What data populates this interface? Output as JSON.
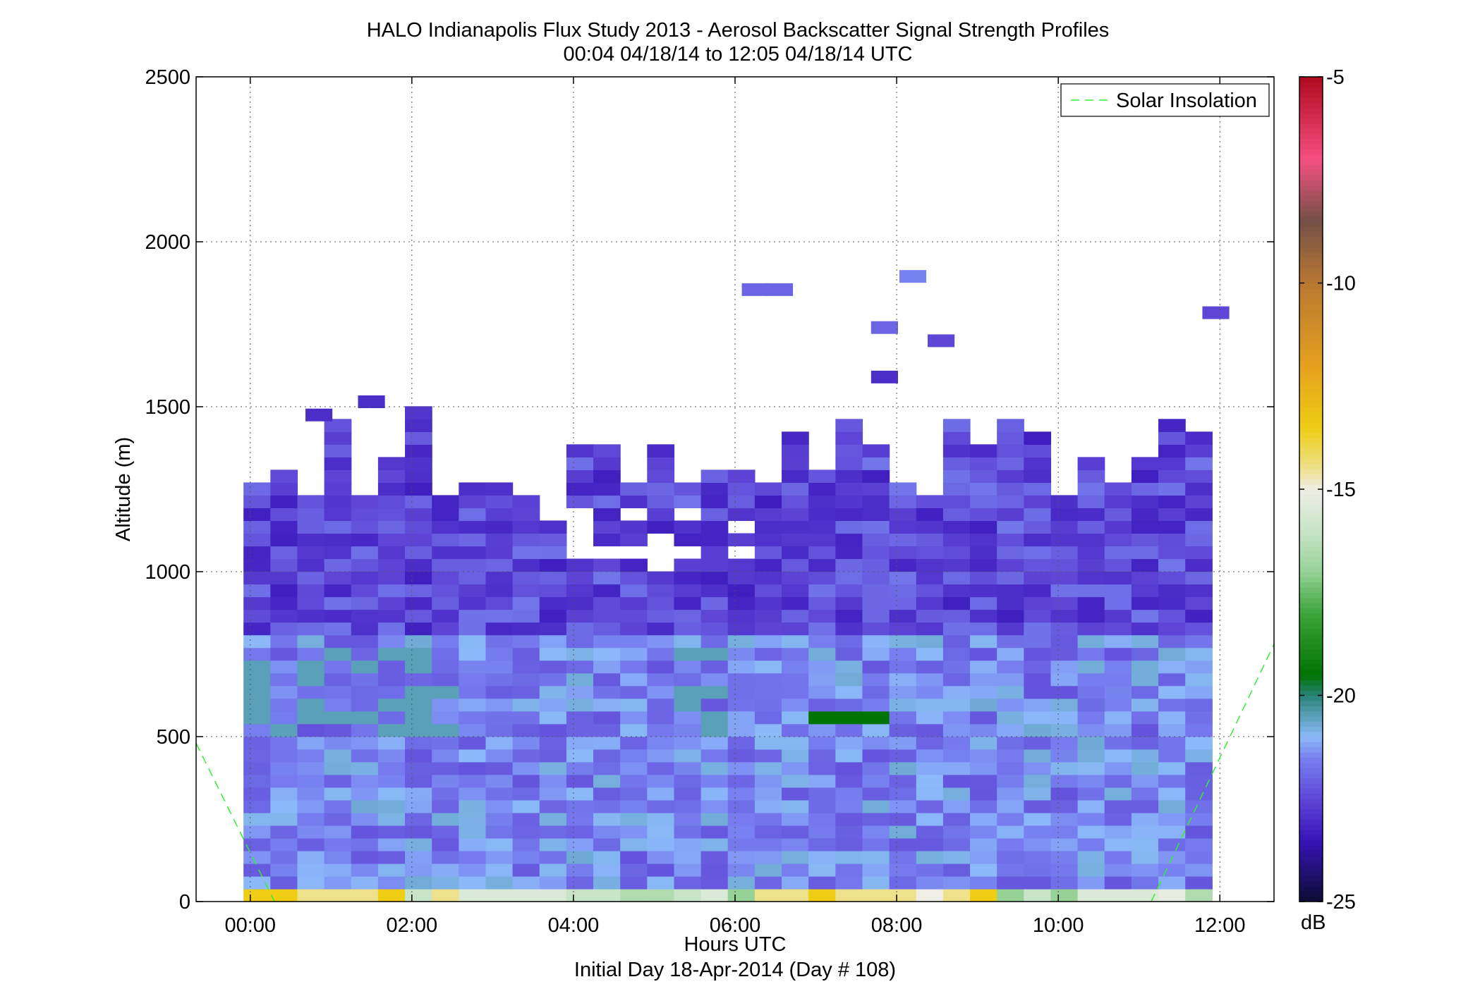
{
  "chart_data": {
    "type": "heatmap",
    "title": "HALO Indianapolis Flux Study 2013 - Aerosol Backscatter Signal Strength Profiles",
    "subtitle": "00:04 04/18/14 to 12:05 04/18/14  UTC",
    "xlabel": "Hours UTC",
    "xlabel2": "Initial Day 18-Apr-2014 (Day # 108)",
    "ylabel": "Altitude (m)",
    "x_ticks": [
      "00:00",
      "02:00",
      "04:00",
      "06:00",
      "08:00",
      "10:00",
      "12:00"
    ],
    "x_tick_hours": [
      0,
      2,
      4,
      6,
      8,
      10,
      12
    ],
    "xlim_hours": [
      -0.67,
      12.67
    ],
    "y_ticks": [
      "0",
      "500",
      "1000",
      "1500",
      "2000",
      "2500"
    ],
    "y_tick_values": [
      0,
      500,
      1000,
      1500,
      2000,
      2500
    ],
    "ylim": [
      0,
      2500
    ],
    "grid": true,
    "legend": {
      "position": "top-right",
      "entries": [
        "Solar Insolation"
      ]
    },
    "colorbar": {
      "label": "dB",
      "ticks": [
        "-5",
        "-10",
        "-15",
        "-20",
        "-25"
      ],
      "tick_values": [
        -5,
        -10,
        -15,
        -20,
        -25
      ],
      "range": [
        -25,
        -5
      ]
    },
    "time_bins": {
      "start_hour": 0.083,
      "step_hours": 0.333,
      "count": 36
    },
    "altitude_bins": {
      "start_m": 0,
      "step_m": 38.5,
      "count": 40
    },
    "surface_row_db": [
      -13.5,
      -13.5,
      -14.5,
      -14.5,
      -14.5,
      -13.5,
      -16,
      -14.5,
      -15.5,
      -15.5,
      -15.5,
      -15.5,
      -16,
      -16,
      -16.5,
      -16.5,
      -16,
      -15.5,
      -17,
      -14.5,
      -14.5,
      -13.5,
      -14.5,
      -14.5,
      -14.5,
      -15,
      -14.5,
      -13.5,
      -17,
      -16,
      -17,
      -15.5,
      -15.5,
      -15.5,
      -15.2,
      -16.5
    ],
    "typical_db": {
      "lower_layer_0_to_800m": -21.5,
      "upper_layer_800_to_1300m": -22.5,
      "residual_layer_500_to_750m": -20.5,
      "green_patch_near_06_to_07_at_550m": -19.5
    },
    "solar_insolation_line": [
      {
        "hour": -0.67,
        "altitude_m": 480
      },
      {
        "hour": 0.3,
        "altitude_m": 0
      },
      {
        "hour": 11.15,
        "altitude_m": 0
      },
      {
        "hour": 12.67,
        "altitude_m": 780
      }
    ],
    "sparse_cells": [
      {
        "hour": 6.25,
        "altitude_m": 1855,
        "db": -22
      },
      {
        "hour": 6.55,
        "altitude_m": 1855,
        "db": -22
      },
      {
        "hour": 8.2,
        "altitude_m": 1895,
        "db": -21.5
      },
      {
        "hour": 7.85,
        "altitude_m": 1740,
        "db": -22
      },
      {
        "hour": 8.55,
        "altitude_m": 1700,
        "db": -22.5
      },
      {
        "hour": 11.95,
        "altitude_m": 1785,
        "db": -22.5
      },
      {
        "hour": 7.85,
        "altitude_m": 1590,
        "db": -23
      },
      {
        "hour": 1.5,
        "altitude_m": 1515,
        "db": -23
      },
      {
        "hour": 0.85,
        "altitude_m": 1475,
        "db": -23
      }
    ]
  }
}
